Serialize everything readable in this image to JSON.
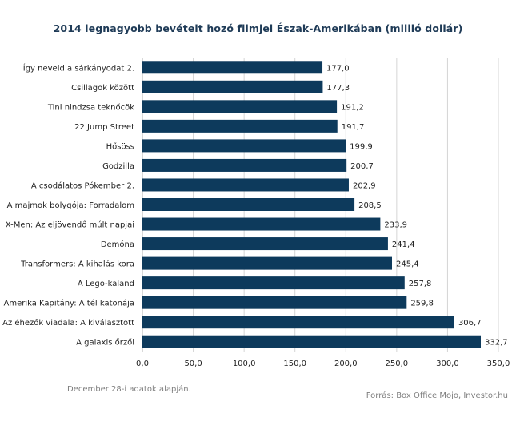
{
  "chart_data": {
    "type": "bar",
    "orientation": "horizontal",
    "title": "2014 legnagyobb bevételt  hozó filmjei Észak-Amerikában  (millió dollár)",
    "categories": [
      "Így neveld a sárkányodat 2.",
      "Csillagok között",
      "Tini nindzsa teknőcök",
      "22 Jump Street",
      "Hősöss",
      "Godzilla",
      "A csodálatos Pókember 2.",
      "A majmok bolygója: Forradalom",
      "X-Men: Az eljövendő múlt napjai",
      "Demóna",
      "Transformers: A kihalás kora",
      "A Lego-kaland",
      "Amerika Kapitány: A tél katonája",
      "Az éhezők viadala: A kiválasztott",
      "A galaxis őrzői"
    ],
    "values": [
      177.0,
      177.3,
      191.2,
      191.7,
      199.9,
      200.7,
      202.9,
      208.5,
      233.9,
      241.4,
      245.4,
      257.8,
      259.8,
      306.7,
      332.7
    ],
    "value_labels": [
      "177,0",
      "177,3",
      "191,2",
      "191,7",
      "199,9",
      "200,7",
      "202,9",
      "208,5",
      "233,9",
      "241,4",
      "245,4",
      "257,8",
      "259,8",
      "306,7",
      "332,7"
    ],
    "xlim": [
      0,
      350
    ],
    "xticks": [
      0,
      50,
      100,
      150,
      200,
      250,
      300,
      350
    ],
    "xtick_labels": [
      "0,0",
      "50,0",
      "100,0",
      "150,0",
      "200,0",
      "250,0",
      "300,0",
      "350,0"
    ],
    "grid": "vertical",
    "bar_color": "#0d3a5c"
  },
  "footer": {
    "note": "December 28-i adatok alapján.",
    "source": "Forrás: Box Office Mojo, Investor.hu"
  }
}
